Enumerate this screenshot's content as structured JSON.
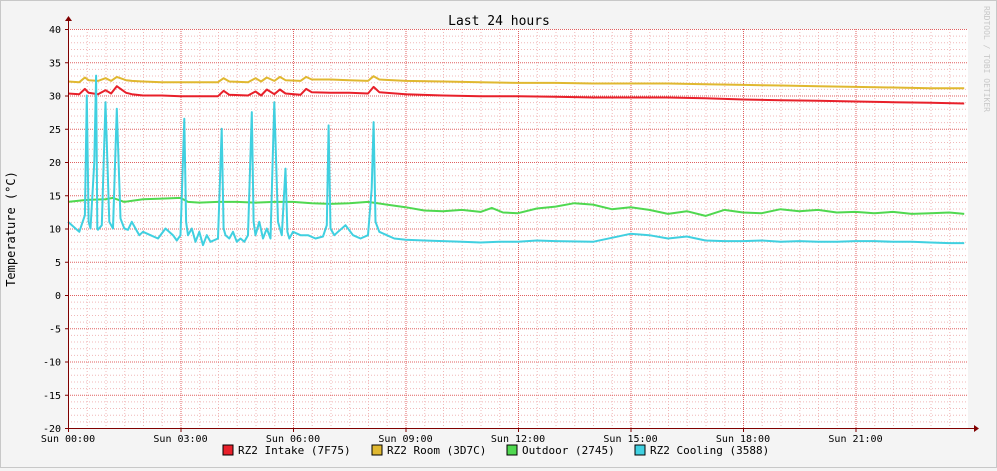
{
  "chart_data": {
    "type": "line",
    "title": "Last 24 hours",
    "ylabel": "Temperature (°C)",
    "xlabel": "",
    "watermark": "RRDTOOL / TOBI OETIKER",
    "ylim": [
      -20,
      40
    ],
    "yticks": [
      40,
      35,
      30,
      25,
      20,
      15,
      10,
      5,
      0,
      -5,
      -10,
      -15,
      -20
    ],
    "xlim": [
      0,
      24
    ],
    "xtick_hours": [
      0,
      3,
      6,
      9,
      12,
      15,
      18,
      21
    ],
    "xticks": [
      "Sun 00:00",
      "Sun 03:00",
      "Sun 06:00",
      "Sun 09:00",
      "Sun 12:00",
      "Sun 15:00",
      "Sun 18:00",
      "Sun 21:00"
    ],
    "grid": true,
    "legend_placement": "bottom",
    "colors": {
      "background": "#f4f4f4",
      "canvas": "#ffffff",
      "major_grid": "#e06060",
      "minor_grid": "#f0b8b8",
      "axis": "#800000",
      "text": "#000000"
    },
    "series": [
      {
        "name": "RZ2 Intake (7F75)",
        "color": "#e8202a",
        "x": [
          0,
          0.3,
          0.45,
          0.55,
          0.8,
          1.0,
          1.15,
          1.3,
          1.55,
          1.7,
          2.0,
          2.5,
          3.0,
          3.5,
          4.0,
          4.15,
          4.3,
          4.8,
          5.0,
          5.15,
          5.3,
          5.5,
          5.65,
          5.8,
          6.2,
          6.35,
          6.5,
          7.0,
          7.5,
          8.0,
          8.15,
          8.3,
          9.0,
          10.0,
          11.0,
          12.0,
          13.0,
          14.0,
          15.0,
          16.0,
          17.0,
          18.0,
          19.0,
          20.0,
          21.0,
          22.0,
          23.0,
          23.9
        ],
        "values": [
          30.3,
          30.2,
          31.0,
          30.4,
          30.2,
          30.8,
          30.3,
          31.4,
          30.4,
          30.2,
          30.0,
          30.0,
          29.9,
          29.9,
          29.9,
          30.7,
          30.1,
          30.0,
          30.6,
          30.0,
          30.9,
          30.2,
          30.9,
          30.3,
          30.1,
          31.0,
          30.5,
          30.4,
          30.4,
          30.3,
          31.3,
          30.5,
          30.2,
          30.0,
          29.9,
          29.9,
          29.8,
          29.7,
          29.7,
          29.7,
          29.6,
          29.4,
          29.3,
          29.2,
          29.1,
          29.0,
          28.9,
          28.8
        ]
      },
      {
        "name": "RZ2 Room (3D7C)",
        "color": "#e0b830",
        "x": [
          0,
          0.3,
          0.45,
          0.55,
          0.8,
          1.0,
          1.15,
          1.3,
          1.55,
          1.7,
          2.0,
          2.5,
          3.0,
          3.5,
          4.0,
          4.15,
          4.3,
          4.8,
          5.0,
          5.15,
          5.3,
          5.5,
          5.65,
          5.8,
          6.2,
          6.35,
          6.5,
          7.0,
          7.5,
          8.0,
          8.15,
          8.3,
          9.0,
          10.0,
          11.0,
          12.0,
          13.0,
          14.0,
          15.0,
          16.0,
          17.0,
          18.0,
          19.0,
          20.0,
          21.0,
          22.0,
          23.0,
          23.9
        ],
        "values": [
          32.1,
          32.0,
          32.7,
          32.3,
          32.2,
          32.6,
          32.2,
          32.8,
          32.3,
          32.2,
          32.1,
          32.0,
          32.0,
          32.0,
          32.0,
          32.6,
          32.1,
          32.0,
          32.6,
          32.1,
          32.7,
          32.2,
          32.8,
          32.3,
          32.2,
          32.8,
          32.4,
          32.4,
          32.3,
          32.2,
          32.9,
          32.4,
          32.2,
          32.1,
          32.0,
          31.9,
          31.9,
          31.8,
          31.8,
          31.8,
          31.7,
          31.6,
          31.5,
          31.4,
          31.3,
          31.2,
          31.1,
          31.1
        ]
      },
      {
        "name": "Outdoor (2745)",
        "color": "#50d850",
        "x": [
          0,
          0.5,
          1.0,
          1.2,
          1.5,
          2.0,
          2.5,
          3.0,
          3.2,
          3.5,
          4.0,
          4.5,
          5.0,
          5.5,
          6.0,
          6.5,
          7.0,
          7.5,
          8.0,
          8.5,
          9.0,
          9.5,
          10.0,
          10.5,
          11.0,
          11.3,
          11.6,
          12.0,
          12.5,
          13.0,
          13.5,
          14.0,
          14.5,
          15.0,
          15.5,
          16.0,
          16.5,
          17.0,
          17.5,
          18.0,
          18.5,
          19.0,
          19.5,
          20.0,
          20.5,
          21.0,
          21.5,
          22.0,
          22.5,
          23.0,
          23.5,
          23.9
        ],
        "values": [
          14.0,
          14.3,
          14.4,
          14.6,
          14.0,
          14.4,
          14.5,
          14.6,
          14.0,
          13.9,
          14.0,
          14.0,
          13.9,
          14.0,
          14.0,
          13.8,
          13.7,
          13.8,
          14.0,
          13.6,
          13.2,
          12.7,
          12.6,
          12.8,
          12.5,
          13.1,
          12.4,
          12.3,
          13.0,
          13.3,
          13.8,
          13.6,
          12.9,
          13.2,
          12.8,
          12.2,
          12.6,
          11.9,
          12.8,
          12.4,
          12.3,
          12.9,
          12.6,
          12.8,
          12.4,
          12.5,
          12.3,
          12.5,
          12.2,
          12.3,
          12.4,
          12.2
        ]
      },
      {
        "name": "RZ2 Cooling (3588)",
        "color": "#40d0e0",
        "x": [
          0,
          0.2,
          0.3,
          0.45,
          0.5,
          0.55,
          0.6,
          0.7,
          0.75,
          0.78,
          0.8,
          0.9,
          1.0,
          1.1,
          1.2,
          1.3,
          1.4,
          1.5,
          1.6,
          1.7,
          1.8,
          1.9,
          2.0,
          2.2,
          2.4,
          2.6,
          2.8,
          2.9,
          3.0,
          3.1,
          3.15,
          3.2,
          3.3,
          3.4,
          3.5,
          3.6,
          3.7,
          3.8,
          4.0,
          4.1,
          4.15,
          4.2,
          4.3,
          4.4,
          4.5,
          4.6,
          4.7,
          4.8,
          4.9,
          4.95,
          5.0,
          5.1,
          5.2,
          5.3,
          5.4,
          5.5,
          5.6,
          5.65,
          5.7,
          5.8,
          5.85,
          5.9,
          6.0,
          6.2,
          6.4,
          6.6,
          6.8,
          6.9,
          6.95,
          7.0,
          7.1,
          7.2,
          7.4,
          7.6,
          7.8,
          8.0,
          8.1,
          8.15,
          8.2,
          8.3,
          8.5,
          8.7,
          9.0,
          9.5,
          10.0,
          10.5,
          11.0,
          11.5,
          12.0,
          12.5,
          13.0,
          14.0,
          14.5,
          15.0,
          15.5,
          16.0,
          16.5,
          17.0,
          17.5,
          18.0,
          18.5,
          19.0,
          19.5,
          20.0,
          20.5,
          21.0,
          21.5,
          22.0,
          22.5,
          23.0,
          23.5,
          23.9
        ],
        "values": [
          11.0,
          10.0,
          9.5,
          12.0,
          30.0,
          11.0,
          10.0,
          20.0,
          33.0,
          10.0,
          9.8,
          10.5,
          29.0,
          11.0,
          10.0,
          28.0,
          11.5,
          10.0,
          9.8,
          11.0,
          10.0,
          9.0,
          9.5,
          9.0,
          8.5,
          10.0,
          9.0,
          8.2,
          9.0,
          26.5,
          11.0,
          9.0,
          10.0,
          8.0,
          9.5,
          7.5,
          9.0,
          8.0,
          8.5,
          25.0,
          10.0,
          9.0,
          8.5,
          9.5,
          8.0,
          8.5,
          8.0,
          9.0,
          27.5,
          11.0,
          9.0,
          11.0,
          8.5,
          10.0,
          8.5,
          29.0,
          11.0,
          10.0,
          9.0,
          19.0,
          9.5,
          8.5,
          9.5,
          9.0,
          9.0,
          8.5,
          8.8,
          10.5,
          25.5,
          10.0,
          9.0,
          9.5,
          10.5,
          9.0,
          8.5,
          9.0,
          16.0,
          26.0,
          11.0,
          9.5,
          9.0,
          8.5,
          8.3,
          8.2,
          8.1,
          8.0,
          7.9,
          8.0,
          8.0,
          8.2,
          8.1,
          8.0,
          8.6,
          9.2,
          9.0,
          8.5,
          8.8,
          8.2,
          8.1,
          8.1,
          8.2,
          8.0,
          8.1,
          8.0,
          8.0,
          8.1,
          8.1,
          8.0,
          8.0,
          7.9,
          7.8,
          7.8
        ]
      }
    ]
  }
}
